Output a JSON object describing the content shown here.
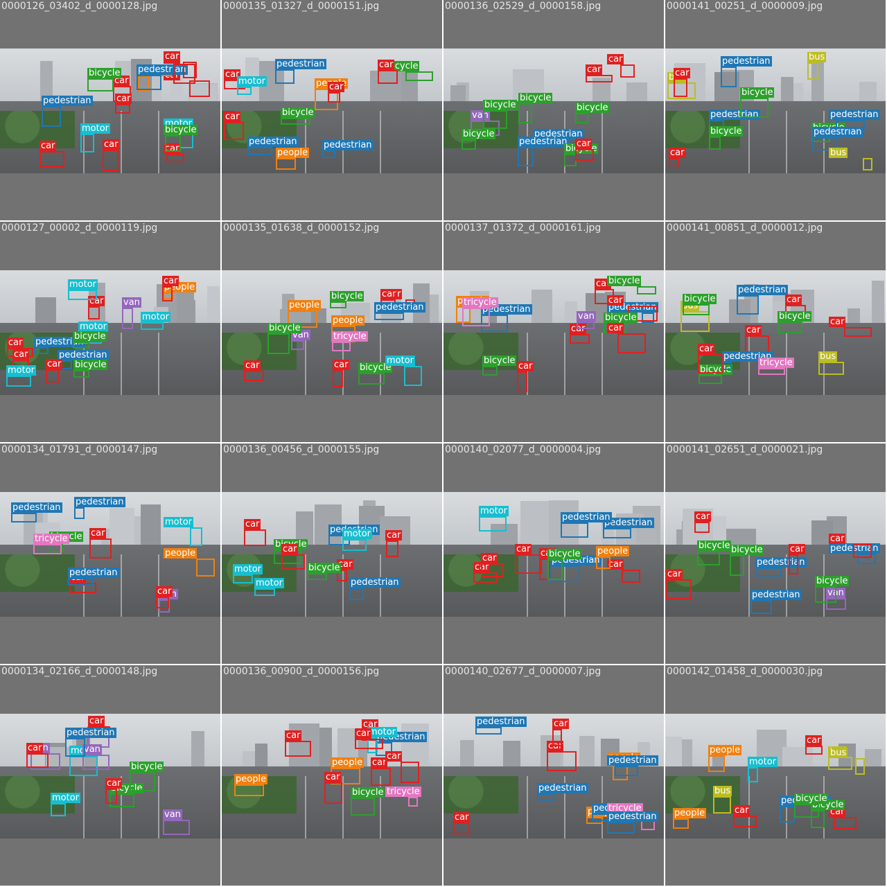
{
  "palette": {
    "car": "#e02020",
    "pedestrian": "#1f77b4",
    "people": "#f08010",
    "bicycle": "#2ca02c",
    "motor": "#17becf",
    "van": "#9467bd",
    "tricycle": "#e377c2",
    "bus": "#bcbd22"
  },
  "tiles": [
    {
      "title": "0000126_03402_d_0000128.jpg",
      "labels": [
        "car",
        "car",
        "motor",
        "motor",
        "pedestrian",
        "car",
        "people",
        "bicycle",
        "pedestrian",
        "bicycle",
        "car",
        "car",
        "car",
        "car",
        "car"
      ]
    },
    {
      "title": "0000135_01327_d_0000151.jpg",
      "labels": [
        "pedestrian",
        "bicycle",
        "car",
        "pedestrian",
        "people",
        "bicycle",
        "car",
        "car",
        "car",
        "people",
        "motor",
        "pedestrian"
      ]
    },
    {
      "title": "0000136_02529_d_0000158.jpg",
      "labels": [
        "pedestrian",
        "pedestrian",
        "van",
        "bicycle",
        "car",
        "car",
        "bicycle",
        "bicycle",
        "car",
        "bicycle",
        "bicycle"
      ]
    },
    {
      "title": "0000141_00251_d_0000009.jpg",
      "labels": [
        "bicycle",
        "pedestrian",
        "pedestrian",
        "bus",
        "car",
        "bus",
        "pedestrian",
        "bicycle",
        "bus",
        "pedestrian",
        "bicycle",
        "car"
      ]
    },
    {
      "title": "0000127_00002_d_0000119.jpg",
      "labels": [
        "car",
        "pedestrian",
        "motor",
        "people",
        "pedestrian",
        "bicycle",
        "car",
        "van",
        "motor",
        "motor",
        "car",
        "car",
        "bicycle",
        "motor",
        "car"
      ]
    },
    {
      "title": "0000135_01638_d_0000152.jpg",
      "labels": [
        "van",
        "people",
        "car",
        "car",
        "tricycle",
        "bicycle",
        "motor",
        "car",
        "car",
        "bicycle",
        "people",
        "pedestrian",
        "bicycle"
      ]
    },
    {
      "title": "0000137_01372_d_0000161.jpg",
      "labels": [
        "car",
        "pedestrian",
        "van",
        "car",
        "bicycle",
        "people",
        "car",
        "bicycle",
        "bicycle",
        "car",
        "car",
        "pedestrian",
        "tricycle"
      ]
    },
    {
      "title": "0000141_00851_d_0000012.jpg",
      "labels": [
        "car",
        "pedestrian",
        "bus",
        "bus",
        "bicycle",
        "car",
        "car",
        "bicycle",
        "pedestrian",
        "car",
        "tricycle",
        "bicycle"
      ]
    },
    {
      "title": "0000134_01791_d_0000147.jpg",
      "labels": [
        "bicycle",
        "van",
        "motor",
        "tricycle",
        "pedestrian",
        "car",
        "car",
        "car",
        "pedestrian",
        "people",
        "pedestrian"
      ]
    },
    {
      "title": "0000136_00456_d_0000155.jpg",
      "labels": [
        "pedestrian",
        "motor",
        "motor",
        "bicycle",
        "pedestrian",
        "car",
        "car",
        "car",
        "bicycle",
        "car",
        "motor"
      ]
    },
    {
      "title": "0000140_02077_d_0000004.jpg",
      "labels": [
        "pedestrian",
        "pedestrian",
        "motor",
        "car",
        "car",
        "car",
        "car",
        "people",
        "bicycle",
        "pedestrian",
        "car"
      ]
    },
    {
      "title": "0000141_02651_d_0000021.jpg",
      "labels": [
        "car",
        "pedestrian",
        "bicycle",
        "pedestrian",
        "bicycle",
        "van",
        "car",
        "car",
        "car",
        "pedestrian",
        "bicycle"
      ]
    },
    {
      "title": "0000134_02166_d_0000148.jpg",
      "labels": [
        "van",
        "motor",
        "car",
        "bicycle",
        "van",
        "van",
        "van",
        "car",
        "bicycle",
        "motor",
        "pedestrian",
        "car"
      ]
    },
    {
      "title": "0000136_00900_d_0000156.jpg",
      "labels": [
        "car",
        "pedestrian",
        "people",
        "bicycle",
        "motor",
        "car",
        "car",
        "car",
        "car",
        "people",
        "car",
        "tricycle"
      ]
    },
    {
      "title": "0000140_02677_d_0000007.jpg",
      "labels": [
        "car",
        "pedestrian",
        "people",
        "pedestrian",
        "tricycle",
        "pedestrian",
        "car",
        "car",
        "people",
        "pedestrian",
        "pedestrian"
      ]
    },
    {
      "title": "0000142_01458_d_0000030.jpg",
      "labels": [
        "car",
        "pedestrian",
        "bus",
        "car",
        "bus",
        "people",
        "motor",
        "bicycle",
        "bus",
        "car",
        "people",
        "bicycle"
      ]
    }
  ]
}
